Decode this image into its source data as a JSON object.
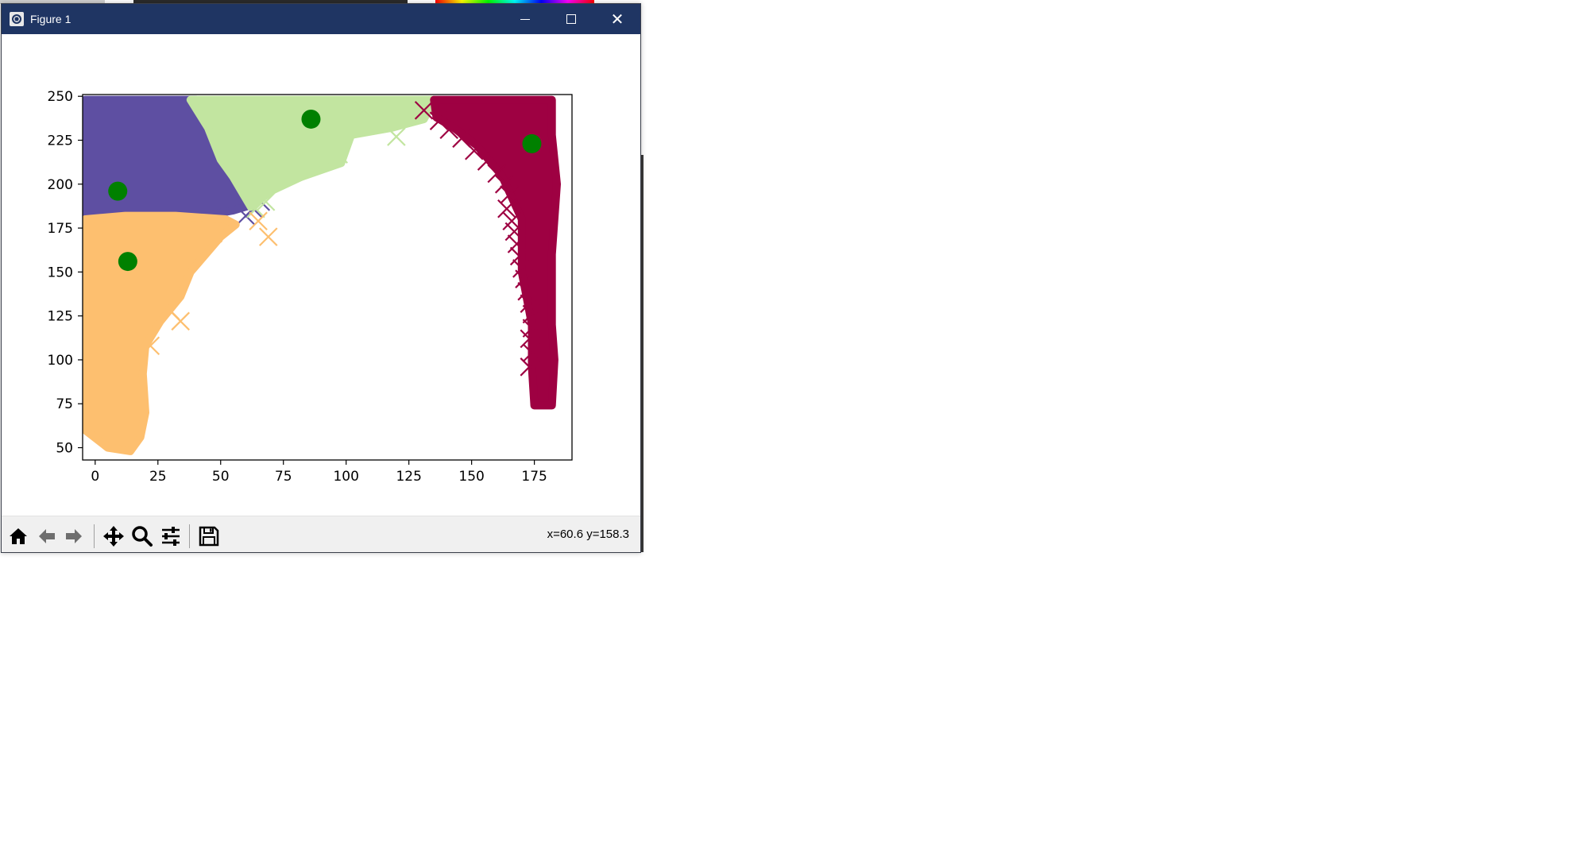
{
  "window": {
    "title": "Figure 1",
    "icon": "matplotlib-icon",
    "controls": [
      "minimize-icon",
      "maximize-icon",
      "close-icon"
    ]
  },
  "toolbar": {
    "buttons": [
      "home-icon",
      "back-icon",
      "forward-icon",
      "pan-icon",
      "zoom-icon",
      "configure-subplots-icon",
      "save-icon"
    ],
    "coords_text": "x=60.6 y=158.3"
  },
  "colors": {
    "titlebar": "#1f3563",
    "cluster_purple": "#5e4fa2",
    "cluster_green": "#c2e5a0",
    "cluster_orange": "#fdbf6f",
    "cluster_crimson": "#9e0142",
    "centroid": "#008000"
  },
  "chart_data": {
    "type": "scatter",
    "marker": "x",
    "xlim": [
      -5,
      190
    ],
    "ylim": [
      43,
      251
    ],
    "xticks": [
      0,
      25,
      50,
      75,
      100,
      125,
      150,
      175
    ],
    "yticks": [
      50,
      75,
      100,
      125,
      150,
      175,
      200,
      225,
      250
    ],
    "grid": false,
    "clusters": [
      {
        "color": "#5e4fa2",
        "region": [
          [
            -4,
            248
          ],
          [
            40,
            248
          ],
          [
            45,
            232
          ],
          [
            50,
            214
          ],
          [
            58,
            204
          ],
          [
            62,
            188
          ],
          [
            55,
            185
          ],
          [
            40,
            181
          ],
          [
            20,
            180
          ],
          [
            5,
            178
          ],
          [
            -4,
            170
          ]
        ],
        "outliers": [
          [
            60,
            182
          ],
          [
            63,
            186
          ],
          [
            66,
            190
          ]
        ]
      },
      {
        "color": "#c2e5a0",
        "region": [
          [
            38,
            248
          ],
          [
            135,
            248
          ],
          [
            131,
            237
          ],
          [
            118,
            232
          ],
          [
            102,
            228
          ],
          [
            100,
            220
          ],
          [
            98,
            212
          ],
          [
            82,
            204
          ],
          [
            70,
            196
          ],
          [
            62,
            187
          ],
          [
            55,
            204
          ],
          [
            50,
            214
          ],
          [
            45,
            232
          ]
        ],
        "outliers": [
          [
            120,
            227
          ],
          [
            97,
            217
          ],
          [
            64,
            186
          ],
          [
            68,
            190
          ]
        ]
      },
      {
        "color": "#fdbf6f",
        "region": [
          [
            -4,
            180
          ],
          [
            12,
            182
          ],
          [
            32,
            182
          ],
          [
            52,
            180
          ],
          [
            56,
            177
          ],
          [
            50,
            170
          ],
          [
            44,
            160
          ],
          [
            38,
            150
          ],
          [
            34,
            136
          ],
          [
            26,
            122
          ],
          [
            20,
            108
          ],
          [
            19,
            92
          ],
          [
            20,
            70
          ],
          [
            18,
            56
          ],
          [
            14,
            48
          ],
          [
            5,
            50
          ],
          [
            -4,
            60
          ]
        ],
        "outliers": [
          [
            65,
            179
          ],
          [
            69,
            170
          ],
          [
            34,
            122
          ],
          [
            22,
            108
          ],
          [
            47,
            172
          ],
          [
            30,
            128
          ]
        ]
      },
      {
        "color": "#9e0142",
        "region": [
          [
            135,
            248
          ],
          [
            182,
            248
          ],
          [
            182,
            228
          ],
          [
            184,
            200
          ],
          [
            182,
            160
          ],
          [
            182,
            120
          ],
          [
            183,
            100
          ],
          [
            182,
            74
          ],
          [
            175,
            74
          ],
          [
            174,
            96
          ],
          [
            174,
            120
          ],
          [
            170,
            150
          ],
          [
            170,
            180
          ],
          [
            162,
            205
          ],
          [
            152,
            222
          ],
          [
            143,
            232
          ],
          [
            136,
            238
          ]
        ],
        "outliers": [
          [
            131,
            242
          ],
          [
            137,
            236
          ],
          [
            141,
            231
          ],
          [
            146,
            226
          ],
          [
            151,
            219
          ],
          [
            156,
            213
          ],
          [
            160,
            206
          ],
          [
            163,
            200
          ],
          [
            165,
            194
          ],
          [
            164,
            186
          ],
          [
            166,
            179
          ],
          [
            167,
            173
          ],
          [
            168,
            166
          ],
          [
            169,
            159
          ],
          [
            170,
            152
          ],
          [
            171,
            146
          ],
          [
            172,
            139
          ],
          [
            173,
            132
          ],
          [
            174,
            126
          ],
          [
            174,
            118
          ],
          [
            173,
            112
          ],
          [
            174,
            104
          ],
          [
            173,
            96
          ]
        ]
      }
    ],
    "centroids": [
      [
        9,
        196
      ],
      [
        13,
        156
      ],
      [
        86,
        237
      ],
      [
        174,
        223
      ]
    ]
  }
}
